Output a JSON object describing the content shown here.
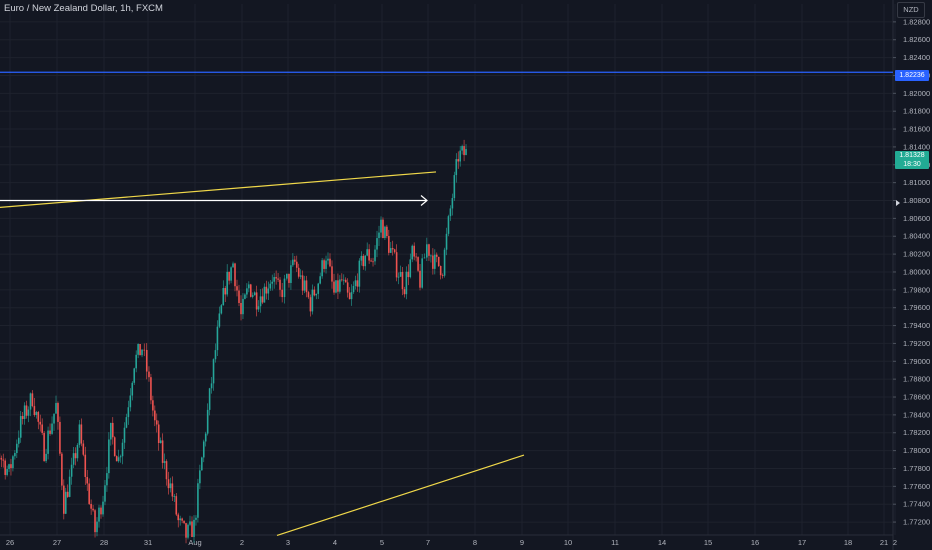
{
  "header": {
    "title": "Euro / New Zealand Dollar, 1h, FXCM",
    "currency": "NZD"
  },
  "colors": {
    "background": "#131722",
    "up": "#26a69a",
    "down": "#ef5350",
    "hline": "#2962ff",
    "trendline": "#f0d84a",
    "arrow": "#ffffff",
    "grid": "#1e222d"
  },
  "tags": {
    "hline_price": "1.82236",
    "last_price": "1.81328",
    "countdown": "18:30"
  },
  "chart_data": {
    "type": "candlestick",
    "symbol": "EURNZD",
    "timeframe": "1h",
    "ylim": [
      1.771,
      1.83
    ],
    "y_ticks": [
      "1.82800",
      "1.82600",
      "1.82400",
      "1.82200",
      "1.82000",
      "1.81800",
      "1.81600",
      "1.81400",
      "1.81200",
      "1.81000",
      "1.80800",
      "1.80600",
      "1.80400",
      "1.80200",
      "1.80000",
      "1.79800",
      "1.79600",
      "1.79400",
      "1.79200",
      "1.79000",
      "1.78800",
      "1.78600",
      "1.78400",
      "1.78200",
      "1.78000",
      "1.77800",
      "1.77600",
      "1.77400",
      "1.77200"
    ],
    "x_ticks": [
      "26",
      "27",
      "28",
      "31",
      "Aug",
      "2",
      "3",
      "4",
      "5",
      "7",
      "8",
      "9",
      "10",
      "11",
      "14",
      "15",
      "16",
      "17",
      "18",
      "21",
      "2"
    ],
    "x_tick_dates": [
      "Jul 26",
      "Jul 27",
      "Jul 28",
      "Jul 31",
      "Aug 1",
      "Aug 2",
      "Aug 3",
      "Aug 4",
      "Aug 5",
      "Aug 7",
      "Aug 8",
      "Aug 9",
      "Aug 10",
      "Aug 11",
      "Aug 14",
      "Aug 15",
      "Aug 16",
      "Aug 17",
      "Aug 18",
      "Aug 21",
      "Aug 22"
    ],
    "series_path": [
      [
        "Jul 25",
        1.7755
      ],
      [
        "Jul 25",
        1.78
      ],
      [
        "Jul 26",
        1.7775
      ],
      [
        "Jul 26",
        1.783
      ],
      [
        "Jul 26",
        1.786
      ],
      [
        "Jul 26",
        1.78
      ],
      [
        "Jul 27",
        1.785
      ],
      [
        "Jul 27",
        1.774
      ],
      [
        "Jul 27",
        1.7775
      ],
      [
        "Jul 27",
        1.782
      ],
      [
        "Jul 27",
        1.776
      ],
      [
        "Jul 27",
        1.771
      ],
      [
        "Jul 28",
        1.775
      ],
      [
        "Jul 28",
        1.782
      ],
      [
        "Jul 28",
        1.779
      ],
      [
        "Jul 28",
        1.784
      ],
      [
        "Jul 28",
        1.79
      ],
      [
        "Jul 28",
        1.7915
      ],
      [
        "Jul 31",
        1.789
      ],
      [
        "Jul 31",
        1.783
      ],
      [
        "Jul 31",
        1.779
      ],
      [
        "Jul 31",
        1.776
      ],
      [
        "Jul 31",
        1.772
      ],
      [
        "Jul 31",
        1.7705
      ],
      [
        "Aug 1",
        1.7715
      ],
      [
        "Aug 1",
        1.779
      ],
      [
        "Aug 1",
        1.786
      ],
      [
        "Aug 1",
        1.793
      ],
      [
        "Aug 1",
        1.7985
      ],
      [
        "Aug 1",
        1.801
      ],
      [
        "Aug 2",
        1.795
      ],
      [
        "Aug 2",
        1.7985
      ],
      [
        "Aug 2",
        1.797
      ],
      [
        "Aug 2",
        1.798
      ],
      [
        "Aug 2",
        1.7995
      ],
      [
        "Aug 2",
        1.7975
      ],
      [
        "Aug 3",
        1.799
      ],
      [
        "Aug 3",
        1.801
      ],
      [
        "Aug 3",
        1.7985
      ],
      [
        "Aug 3",
        1.7965
      ],
      [
        "Aug 3",
        1.799
      ],
      [
        "Aug 3",
        1.802
      ],
      [
        "Aug 4",
        1.7975
      ],
      [
        "Aug 4",
        1.799
      ],
      [
        "Aug 4",
        1.7965
      ],
      [
        "Aug 4",
        1.7995
      ],
      [
        "Aug 4",
        1.802
      ],
      [
        "Aug 4",
        1.8015
      ],
      [
        "Aug 7",
        1.8055
      ],
      [
        "Aug 7",
        1.803
      ],
      [
        "Aug 7",
        1.8005
      ],
      [
        "Aug 7",
        1.7985
      ],
      [
        "Aug 7",
        1.802
      ],
      [
        "Aug 7",
        1.799
      ],
      [
        "Aug 8",
        1.803
      ],
      [
        "Aug 8",
        1.801
      ],
      [
        "Aug 8",
        1.8005
      ],
      [
        "Aug 8",
        1.807
      ],
      [
        "Aug 8",
        1.813
      ],
      [
        "Aug 8",
        1.8133
      ]
    ],
    "annotations": {
      "horizontal_line": 1.82236,
      "trendline_upper": [
        [
          "Jul 25",
          1.807
        ],
        [
          "Aug 8",
          1.8112
        ]
      ],
      "trendline_lower": [
        [
          "Aug 2",
          1.7705
        ],
        [
          "Aug 10",
          1.7795
        ]
      ],
      "arrow": [
        [
          "Jul 25",
          1.808
        ],
        [
          "Aug 8",
          1.808
        ]
      ]
    },
    "grid": true
  }
}
